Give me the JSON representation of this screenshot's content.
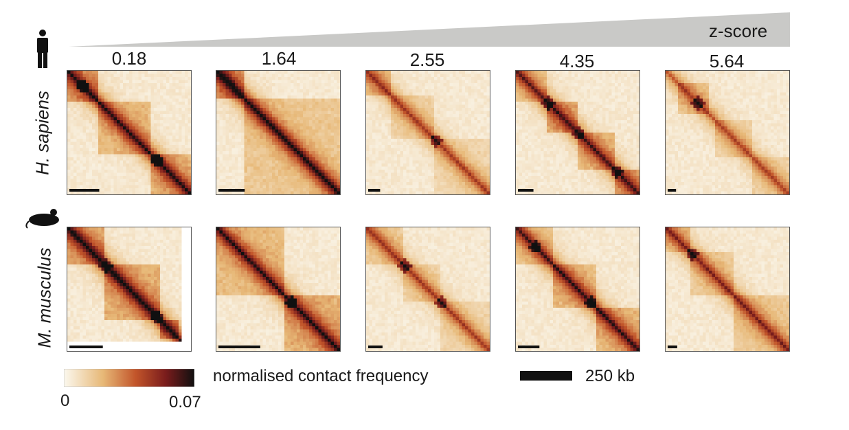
{
  "wedge": {
    "label": "z-score",
    "color": "#c9c9c7"
  },
  "columns": [
    "0.18",
    "1.64",
    "2.55",
    "4.35",
    "5.64"
  ],
  "rows": [
    {
      "species": "H. sapiens",
      "icon": "human-icon"
    },
    {
      "species": "M. musculus",
      "icon": "mouse-icon"
    }
  ],
  "colorbar": {
    "label": "normalised contact frequency",
    "min_label": "0",
    "max_label": "0.07",
    "colors": [
      "#fbf8ee",
      "#e7b877",
      "#c2552a",
      "#7a1c1c",
      "#101010"
    ]
  },
  "scale": {
    "label": "250 kb"
  },
  "panels": [
    [
      {
        "bar": 0.25,
        "tads": [
          [
            0,
            0.25,
            0.9
          ],
          [
            0.25,
            0.66,
            0.7
          ],
          [
            0.66,
            1,
            0.8
          ]
        ],
        "intensity": 0.85,
        "dots": [
          0.12,
          0.72
        ]
      },
      {
        "bar": 0.22,
        "tads": [
          [
            0,
            0.22,
            1.0
          ],
          [
            0.22,
            1,
            0.55
          ]
        ],
        "intensity": 1.0,
        "dots": []
      },
      {
        "bar": 0.1,
        "tads": [
          [
            0,
            0.2,
            0.6
          ],
          [
            0.2,
            0.55,
            0.35
          ],
          [
            0.55,
            1,
            0.3
          ]
        ],
        "intensity": 0.55,
        "dots": [
          0.55
        ]
      },
      {
        "bar": 0.13,
        "tads": [
          [
            0,
            0.25,
            0.5
          ],
          [
            0.25,
            0.5,
            0.8
          ],
          [
            0.5,
            0.8,
            0.7
          ],
          [
            0.8,
            1,
            0.8
          ]
        ],
        "intensity": 0.75,
        "dots": [
          0.25,
          0.5,
          0.8
        ]
      },
      {
        "bar": 0.07,
        "tads": [
          [
            0.1,
            0.35,
            0.55
          ],
          [
            0.4,
            0.7,
            0.35
          ],
          [
            0.7,
            1,
            0.35
          ]
        ],
        "intensity": 0.5,
        "dots": [
          0.25
        ]
      }
    ],
    [
      {
        "bar": 0.28,
        "tads": [
          [
            0,
            0.3,
            0.9
          ],
          [
            0.3,
            0.75,
            0.85
          ],
          [
            0.75,
            0.9,
            0.9
          ]
        ],
        "intensity": 0.95,
        "dots": [
          0.3,
          0.72
        ],
        "gap": true
      },
      {
        "bar": 0.35,
        "tads": [
          [
            0,
            0.55,
            0.7
          ],
          [
            0.55,
            1,
            0.85
          ]
        ],
        "intensity": 0.85,
        "dots": [
          0.6
        ]
      },
      {
        "bar": 0.12,
        "tads": [
          [
            0,
            0.3,
            0.45
          ],
          [
            0.3,
            0.6,
            0.35
          ],
          [
            0.6,
            1,
            0.3
          ]
        ],
        "intensity": 0.55,
        "dots": [
          0.3,
          0.6
        ]
      },
      {
        "bar": 0.18,
        "tads": [
          [
            0,
            0.3,
            0.55
          ],
          [
            0.3,
            0.65,
            0.7
          ],
          [
            0.65,
            1,
            0.75
          ]
        ],
        "intensity": 0.8,
        "dots": [
          0.15,
          0.6
        ]
      },
      {
        "bar": 0.08,
        "tads": [
          [
            0,
            0.2,
            0.5
          ],
          [
            0.2,
            0.55,
            0.45
          ],
          [
            0.55,
            1,
            0.5
          ]
        ],
        "intensity": 0.65,
        "dots": [
          0.2
        ]
      }
    ]
  ]
}
